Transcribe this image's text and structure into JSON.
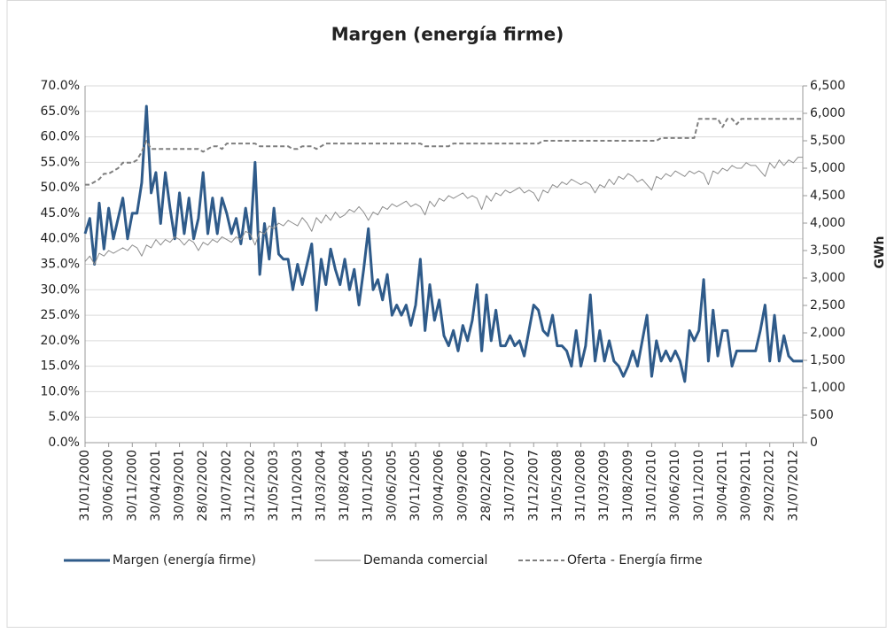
{
  "chart_data": {
    "type": "line",
    "title": "Margen (energía firme)",
    "y2_label": "GWh",
    "categories": [
      "31/01/2000",
      null,
      null,
      null,
      null,
      "30/06/2000",
      null,
      null,
      null,
      null,
      "30/11/2000",
      null,
      null,
      null,
      null,
      "30/04/2001",
      null,
      null,
      null,
      null,
      "30/09/2001",
      null,
      null,
      null,
      null,
      "28/02/2002",
      null,
      null,
      null,
      null,
      "31/07/2002",
      null,
      null,
      null,
      null,
      "31/12/2002",
      null,
      null,
      null,
      null,
      "31/05/2003",
      null,
      null,
      null,
      null,
      "31/10/2003",
      null,
      null,
      null,
      null,
      "31/03/2004",
      null,
      null,
      null,
      null,
      "31/08/2004",
      null,
      null,
      null,
      null,
      "31/01/2005",
      null,
      null,
      null,
      null,
      "30/06/2005",
      null,
      null,
      null,
      null,
      "30/11/2005",
      null,
      null,
      null,
      null,
      "30/04/2006",
      null,
      null,
      null,
      null,
      "30/09/2006",
      null,
      null,
      null,
      null,
      "28/02/2007",
      null,
      null,
      null,
      null,
      "31/07/2007",
      null,
      null,
      null,
      null,
      "31/12/2007",
      null,
      null,
      null,
      null,
      "31/05/2008",
      null,
      null,
      null,
      null,
      "31/10/2008",
      null,
      null,
      null,
      null,
      "31/03/2009",
      null,
      null,
      null,
      null,
      "31/08/2009",
      null,
      null,
      null,
      null,
      "31/01/2010",
      null,
      null,
      null,
      null,
      "30/06/2010",
      null,
      null,
      null,
      null,
      "30/11/2010",
      null,
      null,
      null,
      null,
      "30/04/2011",
      null,
      null,
      null,
      null,
      "30/09/2011",
      null,
      null,
      null,
      null,
      "29/02/2012",
      null,
      null,
      null,
      null,
      "31/07/2012",
      null,
      null
    ],
    "series": [
      {
        "name": "Margen (energía firme)",
        "color": "#2f5b8a",
        "width": 3,
        "dashed": false,
        "axis": "y",
        "values": [
          41,
          44,
          35,
          47,
          38,
          46,
          40,
          44,
          48,
          40,
          45,
          45,
          51,
          66,
          49,
          53,
          43,
          53,
          46,
          40,
          49,
          41,
          48,
          40,
          44,
          53,
          41,
          48,
          41,
          48,
          45,
          41,
          44,
          39,
          46,
          40,
          55,
          33,
          43,
          36,
          46,
          37,
          36,
          36,
          30,
          35,
          31,
          35,
          39,
          26,
          36,
          31,
          38,
          34,
          31,
          36,
          30,
          34,
          27,
          34,
          42,
          30,
          32,
          28,
          33,
          25,
          27,
          25,
          27,
          23,
          27,
          36,
          22,
          31,
          24,
          28,
          21,
          19,
          22,
          18,
          23,
          20,
          24,
          31,
          18,
          29,
          20,
          26,
          19,
          19,
          21,
          19,
          20,
          17,
          22,
          27,
          26,
          22,
          21,
          25,
          19,
          19,
          18,
          15,
          22,
          15,
          19,
          29,
          16,
          22,
          16,
          20,
          16,
          15,
          13,
          15,
          18,
          15,
          20,
          25,
          13,
          20,
          16,
          18,
          16,
          18,
          16,
          12,
          22,
          20,
          22,
          32,
          16,
          26,
          17,
          22,
          22,
          15,
          18,
          18,
          18,
          18,
          18,
          22,
          27,
          16,
          25,
          16,
          21,
          17,
          16,
          16,
          16
        ]
      },
      {
        "name": "Demanda comercial",
        "color": "#8c8c8c",
        "width": 1,
        "dashed": false,
        "axis": "y2",
        "values": [
          3300,
          3400,
          3250,
          3450,
          3400,
          3500,
          3450,
          3500,
          3550,
          3500,
          3600,
          3550,
          3400,
          3600,
          3550,
          3700,
          3600,
          3700,
          3650,
          3750,
          3700,
          3600,
          3700,
          3650,
          3500,
          3650,
          3600,
          3700,
          3650,
          3750,
          3700,
          3650,
          3750,
          3700,
          3850,
          3800,
          3600,
          3850,
          3800,
          3950,
          3900,
          4000,
          3950,
          4050,
          4000,
          3950,
          4100,
          4000,
          3850,
          4100,
          4000,
          4150,
          4050,
          4200,
          4100,
          4150,
          4250,
          4200,
          4300,
          4200,
          4050,
          4200,
          4150,
          4300,
          4250,
          4350,
          4300,
          4350,
          4400,
          4300,
          4350,
          4300,
          4150,
          4400,
          4300,
          4450,
          4400,
          4500,
          4450,
          4500,
          4550,
          4450,
          4500,
          4450,
          4250,
          4500,
          4400,
          4550,
          4500,
          4600,
          4550,
          4600,
          4650,
          4550,
          4600,
          4550,
          4400,
          4600,
          4550,
          4700,
          4650,
          4750,
          4700,
          4800,
          4750,
          4700,
          4750,
          4700,
          4550,
          4700,
          4650,
          4800,
          4700,
          4850,
          4800,
          4900,
          4850,
          4750,
          4800,
          4700,
          4600,
          4850,
          4800,
          4900,
          4850,
          4950,
          4900,
          4850,
          4950,
          4900,
          4950,
          4900,
          4700,
          4950,
          4900,
          5000,
          4950,
          5050,
          5000,
          5000,
          5100,
          5050,
          5050,
          4950,
          4850,
          5100,
          5000,
          5150,
          5050,
          5150,
          5100,
          5200,
          5200
        ]
      },
      {
        "name": "Oferta - Energía firme",
        "color": "#7f7f7f",
        "width": 2,
        "dashed": true,
        "axis": "y2",
        "values": [
          4700,
          4700,
          4750,
          4800,
          4900,
          4900,
          4950,
          5000,
          5100,
          5100,
          5100,
          5150,
          5300,
          5500,
          5350,
          5350,
          5350,
          5350,
          5350,
          5350,
          5350,
          5350,
          5350,
          5350,
          5350,
          5300,
          5350,
          5400,
          5400,
          5350,
          5450,
          5450,
          5450,
          5450,
          5450,
          5450,
          5450,
          5400,
          5400,
          5400,
          5400,
          5400,
          5400,
          5400,
          5350,
          5350,
          5400,
          5400,
          5400,
          5350,
          5400,
          5450,
          5450,
          5450,
          5450,
          5450,
          5450,
          5450,
          5450,
          5450,
          5450,
          5450,
          5450,
          5450,
          5450,
          5450,
          5450,
          5450,
          5450,
          5450,
          5450,
          5450,
          5400,
          5400,
          5400,
          5400,
          5400,
          5400,
          5450,
          5450,
          5450,
          5450,
          5450,
          5450,
          5450,
          5450,
          5450,
          5450,
          5450,
          5450,
          5450,
          5450,
          5450,
          5450,
          5450,
          5450,
          5450,
          5500,
          5500,
          5500,
          5500,
          5500,
          5500,
          5500,
          5500,
          5500,
          5500,
          5500,
          5500,
          5500,
          5500,
          5500,
          5500,
          5500,
          5500,
          5500,
          5500,
          5500,
          5500,
          5500,
          5500,
          5500,
          5550,
          5550,
          5550,
          5550,
          5550,
          5550,
          5550,
          5550,
          5900,
          5900,
          5900,
          5900,
          5900,
          5750,
          5900,
          5900,
          5800,
          5900,
          5900,
          5900,
          5900,
          5900,
          5900,
          5900,
          5900,
          5900,
          5900,
          5900,
          5900,
          5900,
          5900
        ]
      }
    ],
    "ylim": [
      0,
      70
    ],
    "yticks": [
      {
        "value": 0,
        "label": "0.0%"
      },
      {
        "value": 5,
        "label": "5.0%"
      },
      {
        "value": 10,
        "label": "10.0%"
      },
      {
        "value": 15,
        "label": "15.0%"
      },
      {
        "value": 20,
        "label": "20.0%"
      },
      {
        "value": 25,
        "label": "25.0%"
      },
      {
        "value": 30,
        "label": "30.0%"
      },
      {
        "value": 35,
        "label": "35.0%"
      },
      {
        "value": 40,
        "label": "40.0%"
      },
      {
        "value": 45,
        "label": "45.0%"
      },
      {
        "value": 50,
        "label": "50.0%"
      },
      {
        "value": 55,
        "label": "55.0%"
      },
      {
        "value": 60,
        "label": "60.0%"
      },
      {
        "value": 65,
        "label": "65.0%"
      },
      {
        "value": 70,
        "label": "70.0%"
      }
    ],
    "y2lim": [
      0,
      6500
    ],
    "y2ticks": [
      0,
      500,
      {
        "value": 1000,
        "label": "1,000"
      },
      {
        "value": 1500,
        "label": "1,500"
      },
      {
        "value": 2000,
        "label": "2,000"
      },
      {
        "value": 2500,
        "label": "2,500"
      },
      {
        "value": 3000,
        "label": "3,000"
      },
      {
        "value": 3500,
        "label": "3,500"
      },
      {
        "value": 4000,
        "label": "4,000"
      },
      {
        "value": 4500,
        "label": "4,500"
      },
      {
        "value": 5000,
        "label": "5,000"
      },
      {
        "value": 5500,
        "label": "5,500"
      },
      {
        "value": 6000,
        "label": "6,000"
      },
      {
        "value": 6500,
        "label": "6,500"
      }
    ],
    "grid": true,
    "legend": "bottom"
  }
}
